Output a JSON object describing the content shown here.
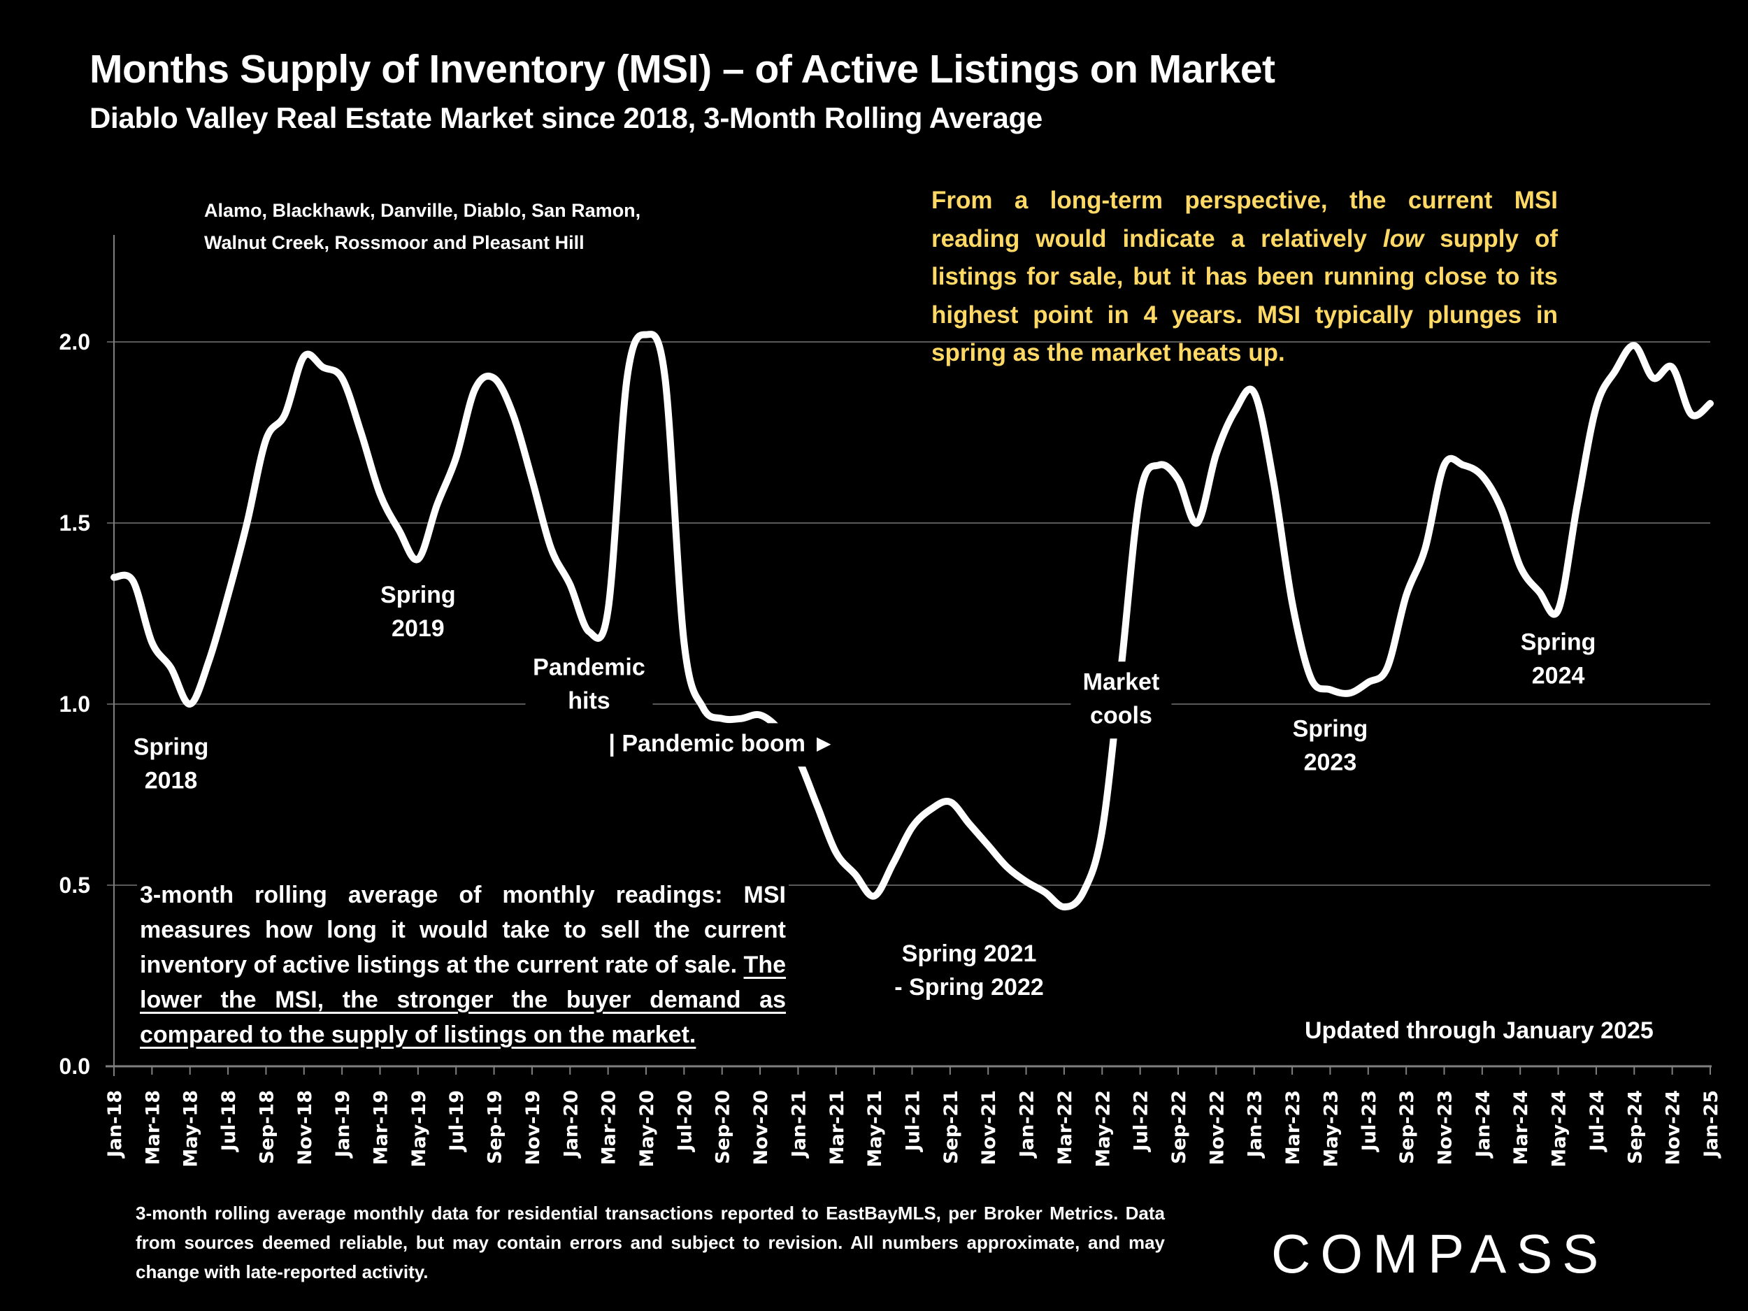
{
  "header": {
    "title": "Months Supply of Inventory (MSI) – of Active Listings on Market",
    "subtitle": "Diablo Valley Real Estate Market since 2018, 3-Month Rolling Average"
  },
  "regions": {
    "line1": "Alamo, Blackhawk, Danville, Diablo, San Ramon,",
    "line2": "Walnut Creek, Rossmoor and Pleasant Hill"
  },
  "notes": {
    "yellow_before": "From a long-term perspective, the current MSI reading would indicate a relatively ",
    "yellow_italic": "low",
    "yellow_after": " supply of listings for sale, but it has been running close to its highest point in 4 years. MSI typically plunges in spring as the market heats up.",
    "yellow_color": "#FFD966",
    "white_plain": "3-month rolling average of monthly readings: MSI measures how long it would take to sell the current inventory of active listings at the current rate of sale. ",
    "white_underlined": "The lower the MSI, the stronger the buyer demand as compared to the supply of listings on the market.",
    "updated": "Updated through January 2025"
  },
  "footer": {
    "disclaimer": "3-month rolling average monthly data for residential transactions reported to EastBayMLS, per Broker Metrics. Data from sources deemed reliable, but may contain errors and subject to revision. All numbers approximate, and may change with late-reported activity.",
    "logo": "COMPASS"
  },
  "chart_data": {
    "type": "line",
    "title": "Months Supply of Inventory (MSI) – of Active Listings on Market",
    "xlabel": "",
    "ylabel": "",
    "ylim": [
      0,
      2.3
    ],
    "yticks": [
      "0.0",
      "0.5",
      "1.0",
      "1.5",
      "2.0"
    ],
    "ytick_values": [
      0,
      0.5,
      1.0,
      1.5,
      2.0
    ],
    "grid": true,
    "legend": "none",
    "line_color": "#FFFFFF",
    "xtick_labels": [
      "Jan-18",
      "Mar-18",
      "May-18",
      "Jul-18",
      "Sep-18",
      "Nov-18",
      "Jan-19",
      "Mar-19",
      "May-19",
      "Jul-19",
      "Sep-19",
      "Nov-19",
      "Jan-20",
      "Mar-20",
      "May-20",
      "Jul-20",
      "Sep-20",
      "Nov-20",
      "Jan-21",
      "Mar-21",
      "May-21",
      "Jul-21",
      "Sep-21",
      "Nov-21",
      "Jan-22",
      "Mar-22",
      "May-22",
      "Jul-22",
      "Sep-22",
      "Nov-22",
      "Jan-23",
      "Mar-23",
      "May-23",
      "Jul-23",
      "Sep-23",
      "Nov-23",
      "Jan-24",
      "Mar-24",
      "May-24",
      "Jul-24",
      "Sep-24",
      "Nov-24",
      "Jan-25"
    ],
    "x_start": "Jan-18",
    "x_end": "Jan-25",
    "series": [
      {
        "name": "MSI 3-month rolling average",
        "values": [
          1.35,
          1.34,
          1.17,
          1.1,
          1.0,
          1.12,
          1.3,
          1.5,
          1.73,
          1.8,
          1.96,
          1.93,
          1.9,
          1.75,
          1.58,
          1.48,
          1.4,
          1.55,
          1.68,
          1.87,
          1.9,
          1.8,
          1.62,
          1.43,
          1.33,
          1.2,
          1.26,
          1.9,
          2.02,
          1.9,
          1.17,
          0.99,
          0.96,
          0.96,
          0.97,
          0.93,
          0.85,
          0.72,
          0.59,
          0.53,
          0.47,
          0.56,
          0.66,
          0.71,
          0.73,
          0.67,
          0.61,
          0.55,
          0.51,
          0.48,
          0.44,
          0.48,
          0.65,
          1.1,
          1.58,
          1.66,
          1.62,
          1.5,
          1.69,
          1.81,
          1.86,
          1.62,
          1.28,
          1.07,
          1.04,
          1.03,
          1.06,
          1.1,
          1.3,
          1.43,
          1.66,
          1.66,
          1.63,
          1.54,
          1.38,
          1.31,
          1.26,
          1.55,
          1.82,
          1.92,
          1.99,
          1.9,
          1.93,
          1.8,
          1.83
        ]
      }
    ],
    "annotations": [
      {
        "lines": [
          "Spring",
          "2018"
        ],
        "month_index": 3,
        "value": 0.86
      },
      {
        "lines": [
          "Spring",
          "2019"
        ],
        "month_index": 16,
        "value": 1.28
      },
      {
        "lines": [
          "Pandemic",
          "hits"
        ],
        "month_index": 25,
        "value": 1.08
      },
      {
        "lines": [
          "| Pandemic boom ►"
        ],
        "month_index": 32,
        "value": 0.87
      },
      {
        "lines": [
          "Spring 2021",
          "- Spring 2022"
        ],
        "month_index": 45,
        "value": 0.29
      },
      {
        "lines": [
          "Market",
          "cools"
        ],
        "month_index": 53,
        "value": 1.04
      },
      {
        "lines": [
          "Spring",
          "2023"
        ],
        "month_index": 64,
        "value": 0.91
      },
      {
        "lines": [
          "Spring",
          "2024"
        ],
        "month_index": 76,
        "value": 1.15
      }
    ]
  }
}
